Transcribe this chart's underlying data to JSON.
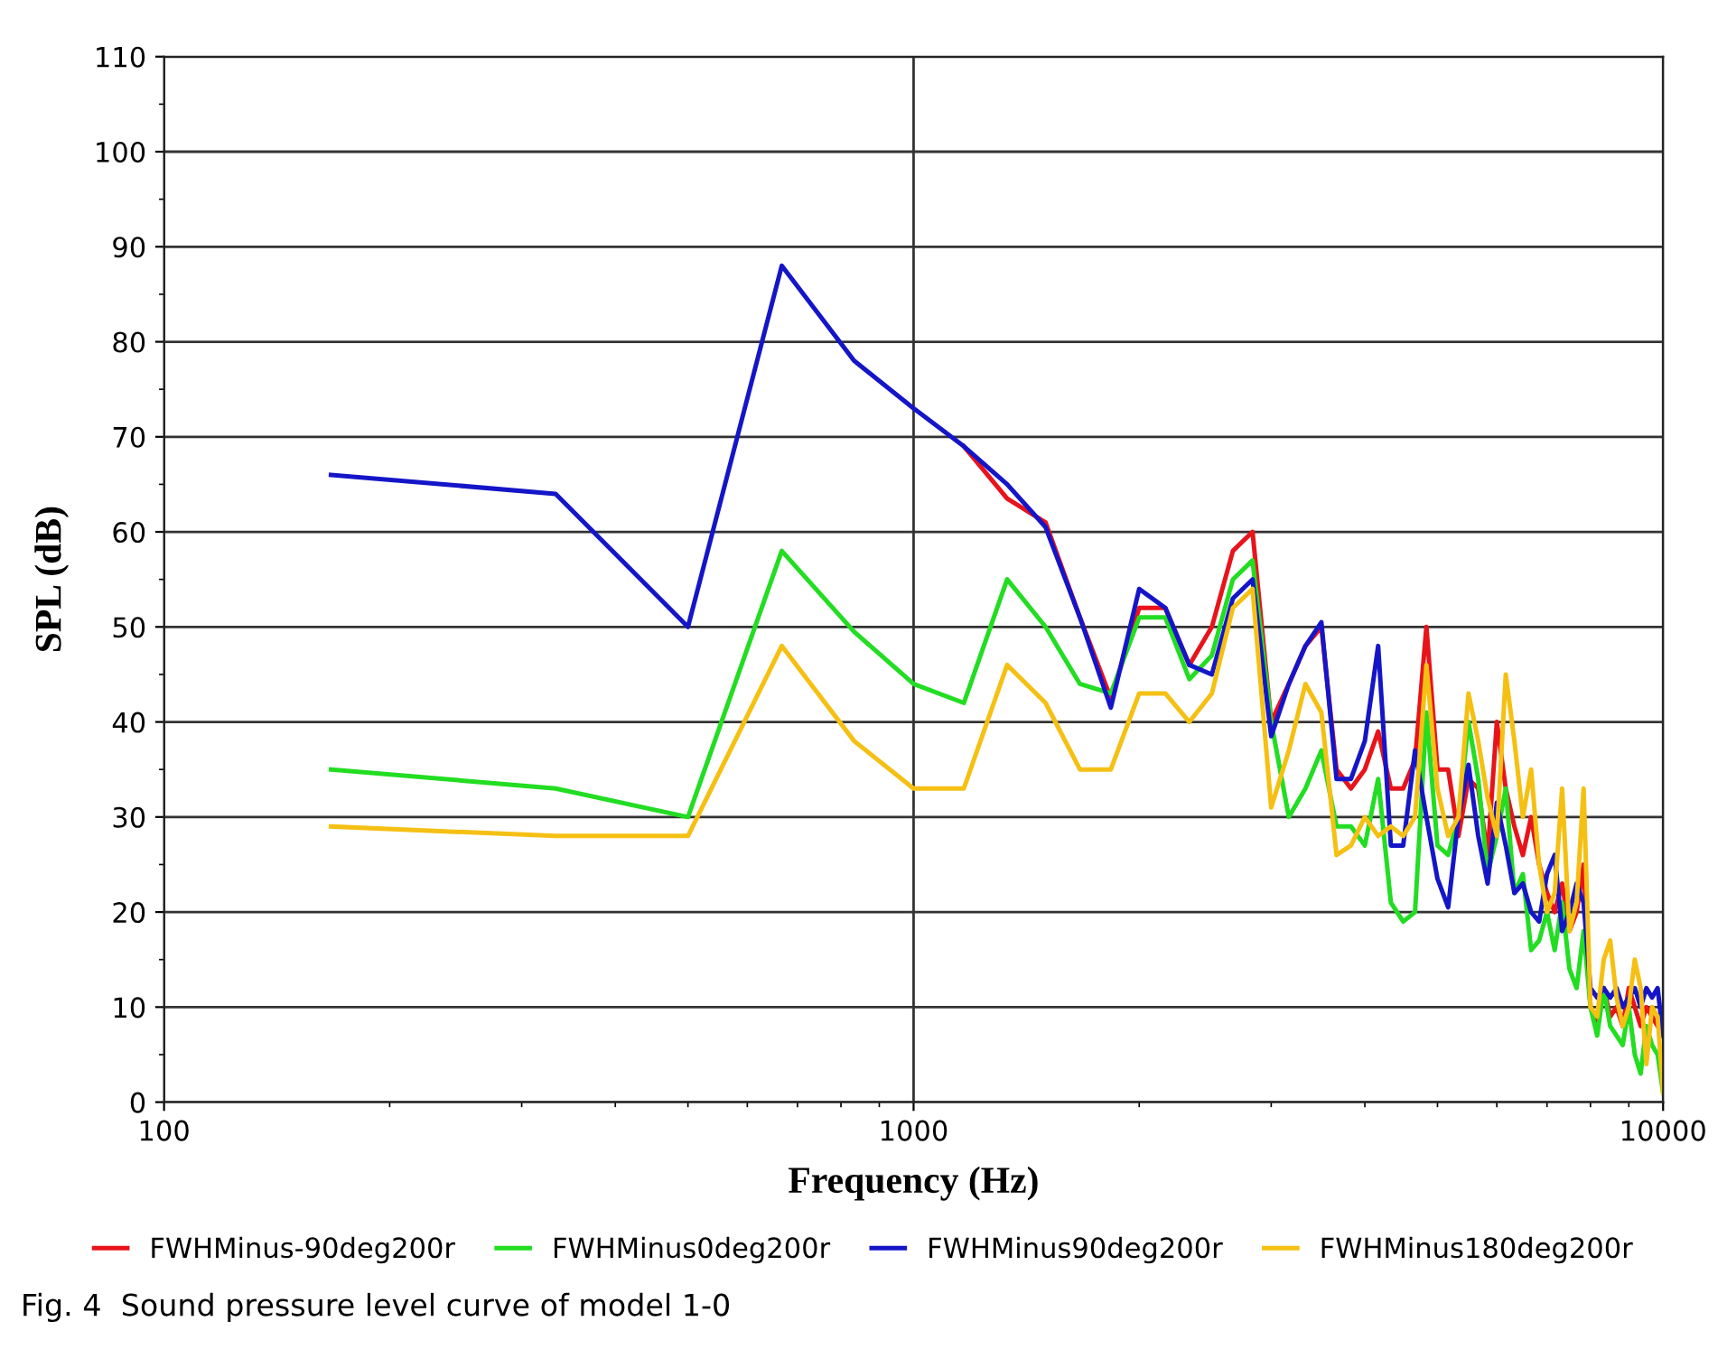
{
  "chart_data": {
    "type": "line",
    "xlabel": "Frequency (Hz)",
    "ylabel": "SPL (dB)",
    "x": [
      167,
      333,
      500,
      667,
      833,
      1000,
      1167,
      1333,
      1500,
      1667,
      1833,
      2000,
      2167,
      2333,
      2500,
      2667,
      2833,
      3000,
      3167,
      3333,
      3500,
      3667,
      3833,
      4000,
      4167,
      4333,
      4500,
      4667,
      4833,
      5000,
      5167,
      5333,
      5500,
      5667,
      5833,
      6000,
      6167,
      6333,
      6500,
      6667,
      6833,
      7000,
      7167,
      7333,
      7500,
      7667,
      7833,
      8000,
      8167,
      8333,
      8500,
      8667,
      8833,
      9000,
      9167,
      9333,
      9500,
      9667,
      9833,
      10000
    ],
    "series": [
      {
        "name": "FWHMinus-90deg200r",
        "color": "#e8131b",
        "values": [
          null,
          null,
          null,
          null,
          null,
          null,
          69,
          63.5,
          61,
          51,
          42.5,
          52,
          52,
          46,
          50,
          58,
          60,
          40,
          44,
          48,
          50,
          35,
          33,
          35,
          39,
          33,
          33,
          36,
          50,
          35,
          35,
          28,
          34,
          33,
          26,
          40,
          33,
          29,
          26,
          30,
          25,
          22,
          20,
          23,
          18,
          20,
          25,
          10,
          8,
          12,
          9,
          10,
          8,
          12,
          10,
          8,
          10,
          9,
          8,
          null
        ]
      },
      {
        "name": "FWHMinus0deg200r",
        "color": "#22dd22",
        "values": [
          35,
          33,
          30,
          58,
          49.5,
          44,
          42,
          55,
          50,
          44,
          43,
          51,
          51,
          44.5,
          47,
          55,
          57,
          40,
          30,
          33,
          37,
          29,
          29,
          27,
          34,
          21,
          19,
          20,
          41,
          27,
          26,
          30,
          40,
          34,
          24,
          28,
          33,
          22,
          24,
          16,
          17,
          20,
          16,
          21,
          14,
          12,
          18,
          10,
          7,
          12,
          8,
          7,
          6,
          10,
          5,
          3,
          8,
          6,
          5,
          1
        ]
      },
      {
        "name": "FWHMinus90deg200r",
        "color": "#1515c8",
        "values": [
          66,
          64,
          50,
          88,
          78,
          73,
          69,
          65,
          60.5,
          51,
          41.5,
          54,
          52,
          46,
          45,
          53,
          55,
          38.5,
          44,
          48,
          50.5,
          34,
          34,
          38,
          48,
          27,
          27,
          37,
          30,
          23.5,
          20.5,
          30,
          35.5,
          28,
          23,
          31.5,
          27,
          22,
          23,
          20,
          19,
          24,
          26,
          18,
          20,
          23,
          21,
          12,
          11,
          12,
          11,
          12,
          10,
          11,
          12,
          10,
          12,
          11,
          12,
          7
        ]
      },
      {
        "name": "FWHMinus180deg200r",
        "color": "#f5c013",
        "values": [
          29,
          28,
          28,
          48,
          38,
          33,
          33,
          46,
          42,
          35,
          35,
          43,
          43,
          40,
          43,
          52,
          54,
          31,
          37,
          44,
          41,
          26,
          27,
          30,
          28,
          29,
          28,
          30,
          46,
          33,
          28,
          30,
          43,
          38,
          32,
          28,
          45,
          38,
          30,
          35,
          25,
          20,
          22,
          33,
          18,
          21,
          33,
          10,
          9,
          15,
          17,
          11,
          8,
          10,
          15,
          12,
          4,
          10,
          9,
          1
        ]
      }
    ],
    "log": "x",
    "xlim": [
      100,
      10000
    ],
    "xticks": [
      100,
      1000,
      10000
    ],
    "ylim": [
      0,
      110
    ],
    "yticks": [
      0,
      10,
      20,
      30,
      40,
      50,
      60,
      70,
      80,
      90,
      100,
      110
    ],
    "grid": true,
    "legend": "bottom",
    "marker": "none",
    "line_style": "solid",
    "annotations": [
      "Fig. 4  Sound pressure level curve of model 1-0"
    ]
  }
}
